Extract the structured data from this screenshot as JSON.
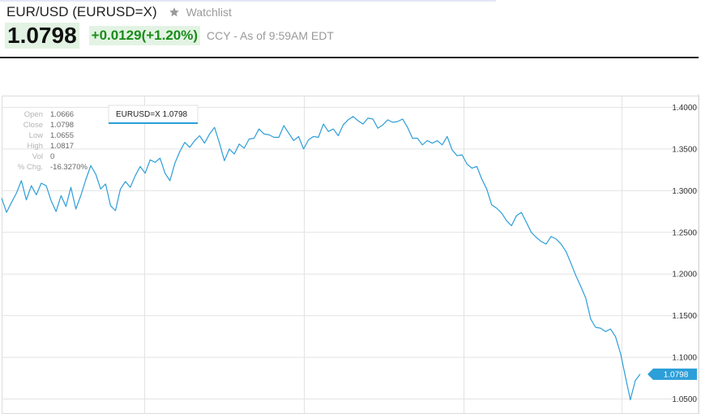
{
  "header": {
    "title": "EUR/USD (EURUSD=X)",
    "watchlist_label": "Watchlist",
    "watchlist_icon": "star-icon",
    "price": "1.0798",
    "change": "+0.0129",
    "change_pct": "(+1.20%)",
    "as_of": "CCY - As of 9:59AM EDT",
    "colors": {
      "up": "#1a8c1a",
      "up_bg": "#e3f3e3"
    }
  },
  "ohlc": {
    "rows": [
      {
        "label": "Open",
        "value": "1.0666"
      },
      {
        "label": "Close",
        "value": "1.0798"
      },
      {
        "label": "Low",
        "value": "1.0655"
      },
      {
        "label": "High",
        "value": "1.0817"
      },
      {
        "label": "Vol",
        "value": "0"
      },
      {
        "label": "% Chg.",
        "value": "-16.3270%"
      }
    ]
  },
  "tooltip": {
    "text": "EURUSD=X 1.0798"
  },
  "last_price_label": "1.0798",
  "chart_data": {
    "type": "line",
    "series": [
      {
        "name": "EURUSD=X",
        "color": "#2c9ed8",
        "values": [
          1.291,
          1.274,
          1.286,
          1.297,
          1.312,
          1.289,
          1.306,
          1.295,
          1.309,
          1.306,
          1.288,
          1.275,
          1.294,
          1.281,
          1.304,
          1.278,
          1.294,
          1.313,
          1.33,
          1.32,
          1.302,
          1.308,
          1.282,
          1.276,
          1.302,
          1.311,
          1.304,
          1.318,
          1.329,
          1.321,
          1.337,
          1.334,
          1.339,
          1.321,
          1.312,
          1.333,
          1.347,
          1.358,
          1.352,
          1.36,
          1.366,
          1.357,
          1.368,
          1.376,
          1.357,
          1.336,
          1.35,
          1.344,
          1.356,
          1.351,
          1.362,
          1.363,
          1.374,
          1.368,
          1.367,
          1.364,
          1.364,
          1.378,
          1.369,
          1.36,
          1.365,
          1.35,
          1.361,
          1.365,
          1.364,
          1.38,
          1.371,
          1.374,
          1.366,
          1.379,
          1.385,
          1.389,
          1.384,
          1.38,
          1.387,
          1.386,
          1.375,
          1.379,
          1.385,
          1.382,
          1.383,
          1.386,
          1.376,
          1.363,
          1.363,
          1.355,
          1.36,
          1.357,
          1.36,
          1.355,
          1.365,
          1.349,
          1.342,
          1.343,
          1.332,
          1.327,
          1.329,
          1.314,
          1.302,
          1.283,
          1.279,
          1.273,
          1.264,
          1.258,
          1.27,
          1.274,
          1.262,
          1.25,
          1.244,
          1.239,
          1.236,
          1.245,
          1.242,
          1.236,
          1.227,
          1.213,
          1.198,
          1.185,
          1.171,
          1.146,
          1.136,
          1.135,
          1.131,
          1.134,
          1.125,
          1.105,
          1.077,
          1.049,
          1.072,
          1.08
        ]
      }
    ],
    "x_ticks": [],
    "y_ticks": [
      "1.4000",
      "1.3500",
      "1.3000",
      "1.2500",
      "1.2000",
      "1.1500",
      "1.1000",
      "1.0500"
    ],
    "ylim": [
      1.05,
      1.4
    ],
    "grid": true,
    "legend": "none"
  }
}
